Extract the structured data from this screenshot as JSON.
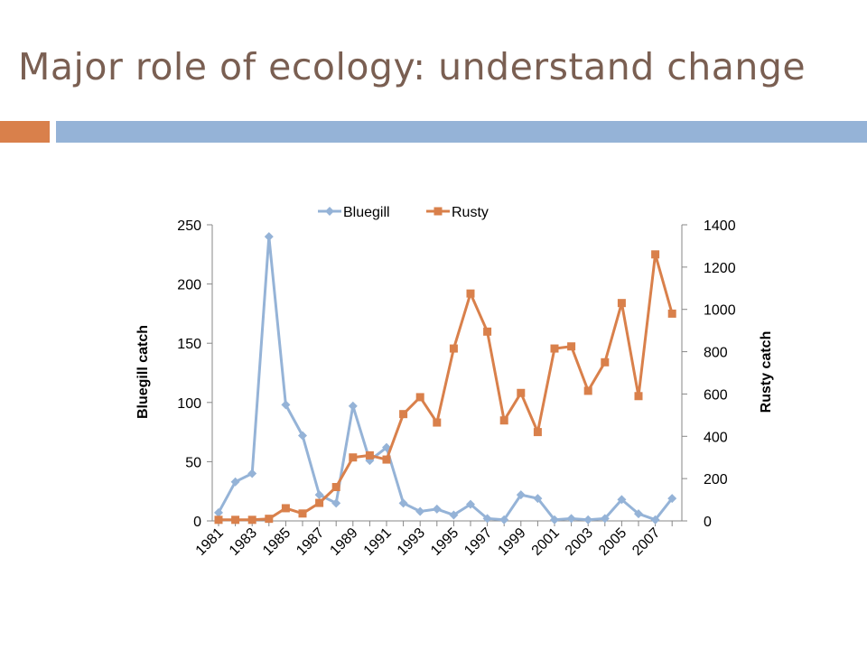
{
  "slide": {
    "title": "Major role of ecology: understand change",
    "accent_color": "#d9804b",
    "bar_color": "#95b3d7"
  },
  "chart_data": {
    "type": "line",
    "x": [
      1981,
      1982,
      1983,
      1984,
      1985,
      1986,
      1987,
      1988,
      1989,
      1990,
      1991,
      1992,
      1993,
      1994,
      1995,
      1996,
      1997,
      1998,
      1999,
      2000,
      2001,
      2002,
      2003,
      2004,
      2005,
      2006,
      2007,
      2008
    ],
    "x_tick_labels": [
      "1981",
      "1983",
      "1985",
      "1987",
      "1989",
      "1991",
      "1993",
      "1995",
      "1997",
      "1999",
      "2001",
      "2003",
      "2005",
      "2007"
    ],
    "series": [
      {
        "name": "Bluegill",
        "axis": "left",
        "color": "#95b3d7",
        "marker": "diamond",
        "values": [
          7,
          33,
          40,
          240,
          98,
          72,
          22,
          15,
          97,
          51,
          62,
          15,
          8,
          10,
          5,
          14,
          2,
          1,
          22,
          19,
          1,
          2,
          1,
          2,
          18,
          6,
          1,
          19
        ]
      },
      {
        "name": "Rusty",
        "axis": "right",
        "color": "#d9804b",
        "marker": "square",
        "values": [
          5,
          5,
          5,
          10,
          60,
          35,
          85,
          160,
          300,
          310,
          290,
          505,
          585,
          465,
          815,
          1075,
          895,
          475,
          605,
          420,
          815,
          825,
          615,
          750,
          1030,
          590,
          1260,
          980
        ]
      }
    ],
    "y_left": {
      "label": "Bluegill catch",
      "ylim": [
        0,
        250
      ],
      "ticks": [
        0,
        50,
        100,
        150,
        200,
        250
      ]
    },
    "y_right": {
      "label": "Rusty catch",
      "ylim": [
        0,
        1400
      ],
      "ticks": [
        0,
        200,
        400,
        600,
        800,
        1000,
        1200,
        1400
      ]
    },
    "grid": false,
    "legend": "top"
  }
}
